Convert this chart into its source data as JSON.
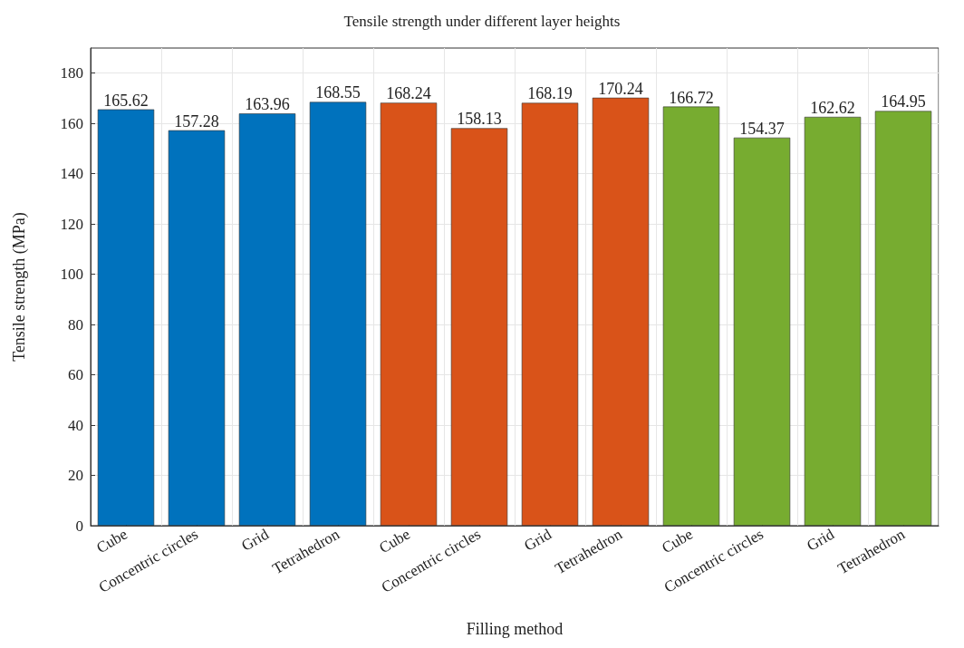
{
  "chart_data": {
    "type": "bar",
    "title": "Tensile strength under different layer heights",
    "xlabel": "Filling method",
    "ylabel": "Tensile strength (MPa)",
    "categories": [
      "Cube",
      "Concentric circles",
      "Grid",
      "Tetrahedron",
      "Cube",
      "Concentric circles",
      "Grid",
      "Tetrahedron",
      "Cube",
      "Concentric circles",
      "Grid",
      "Tetrahedron"
    ],
    "values": [
      165.62,
      157.28,
      163.96,
      168.55,
      168.24,
      158.13,
      168.19,
      170.24,
      166.72,
      154.37,
      162.62,
      164.95
    ],
    "colors": [
      "#0072bd",
      "#0072bd",
      "#0072bd",
      "#0072bd",
      "#d95319",
      "#d95319",
      "#d95319",
      "#d95319",
      "#77ac30",
      "#77ac30",
      "#77ac30",
      "#77ac30"
    ],
    "ylim": [
      0,
      190
    ],
    "yticks": [
      0,
      20,
      40,
      60,
      80,
      100,
      120,
      140,
      160,
      180
    ],
    "grid": true,
    "data_labels": true
  }
}
